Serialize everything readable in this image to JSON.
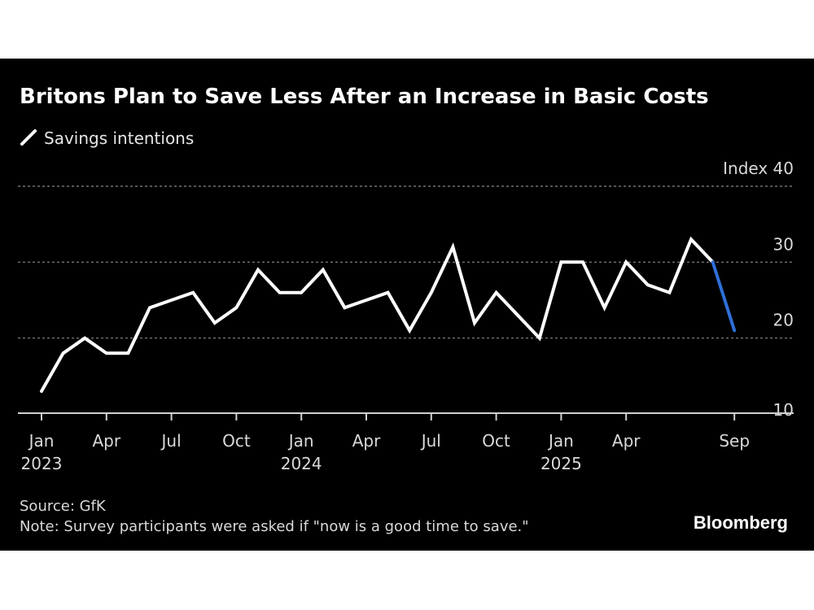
{
  "title": "Britons Plan to Save Less After an Increase in Basic Costs",
  "legend": {
    "label": "Savings intentions"
  },
  "source": "Source: GfK",
  "note": "Note: Survey participants were asked if \"now is a good time to save.\"",
  "brand": "Bloomberg",
  "colors": {
    "background": "#000000",
    "line": "#ffffff",
    "highlight": "#2f6fd8",
    "grid": "#8a8a8a",
    "text": "#d9d9d9"
  },
  "chart_data": {
    "type": "line",
    "title": "Britons Plan to Save Less After an Increase in Basic Costs",
    "ylabel": "Index",
    "ylim": [
      10,
      40
    ],
    "yticks": [
      10,
      20,
      30,
      40
    ],
    "ytick_labels": [
      "10",
      "20",
      "30",
      "Index  40"
    ],
    "grid": true,
    "x_ticks": [
      {
        "month": 0,
        "label": "Jan",
        "year": "2023"
      },
      {
        "month": 3,
        "label": "Apr",
        "year": ""
      },
      {
        "month": 6,
        "label": "Jul",
        "year": ""
      },
      {
        "month": 9,
        "label": "Oct",
        "year": ""
      },
      {
        "month": 12,
        "label": "Jan",
        "year": "2024"
      },
      {
        "month": 15,
        "label": "Apr",
        "year": ""
      },
      {
        "month": 18,
        "label": "Jul",
        "year": ""
      },
      {
        "month": 21,
        "label": "Oct",
        "year": ""
      },
      {
        "month": 24,
        "label": "Jan",
        "year": "2025"
      },
      {
        "month": 27,
        "label": "Apr",
        "year": ""
      },
      {
        "month": 32,
        "label": "Sep",
        "year": ""
      }
    ],
    "series": [
      {
        "name": "Savings intentions",
        "x": [
          "2023-01",
          "2023-02",
          "2023-03",
          "2023-04",
          "2023-05",
          "2023-06",
          "2023-07",
          "2023-08",
          "2023-09",
          "2023-10",
          "2023-11",
          "2023-12",
          "2024-01",
          "2024-02",
          "2024-03",
          "2024-04",
          "2024-05",
          "2024-06",
          "2024-07",
          "2024-08",
          "2024-09",
          "2024-10",
          "2024-11",
          "2024-12",
          "2025-01",
          "2025-02",
          "2025-03",
          "2025-04",
          "2025-05",
          "2025-06",
          "2025-07",
          "2025-08",
          "2025-09"
        ],
        "values": [
          13,
          18,
          20,
          18,
          18,
          24,
          25,
          26,
          22,
          24,
          29,
          26,
          26,
          29,
          24,
          25,
          26,
          21,
          26,
          32,
          22,
          26,
          23,
          20,
          30,
          30,
          24,
          30,
          27,
          26,
          33,
          30,
          21
        ],
        "highlight_last_segment": true
      }
    ]
  }
}
